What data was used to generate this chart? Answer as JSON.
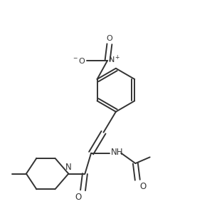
{
  "background_color": "#ffffff",
  "line_color": "#333333",
  "line_width": 1.4,
  "figsize": [
    2.91,
    2.93
  ],
  "dpi": 100,
  "xlim": [
    0.0,
    1.0
  ],
  "ylim": [
    0.0,
    1.0
  ]
}
